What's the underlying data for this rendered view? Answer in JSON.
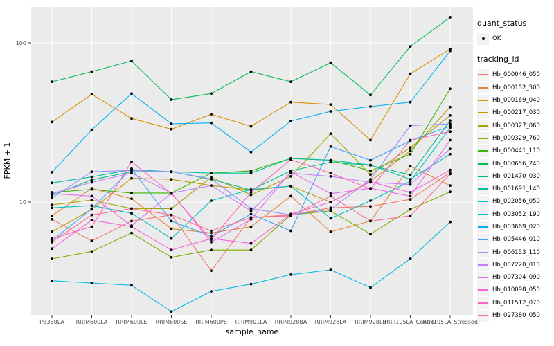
{
  "plot": {
    "panel_bg": "#EBEBEB",
    "grid_color": "#FFFFFF",
    "tick_label_color": "#4D4D4D",
    "point_color": "#000000"
  },
  "legend": {
    "quant_status_title": "quant_status",
    "quant_status_items": [
      {
        "label": "OK"
      }
    ],
    "tracking_id_title": "tracking_id"
  },
  "chart_data": {
    "type": "line",
    "title": "",
    "xlabel": "sample_name",
    "ylabel": "FPKM + 1",
    "y_scale": "log10",
    "ylim": [
      1.95,
      168
    ],
    "y_tick_labels": [
      "100",
      "10"
    ],
    "y_tick_values": [
      100,
      10
    ],
    "y_minor_gridlines": [
      31.623,
      3.1623
    ],
    "grid": true,
    "legend_position": "right",
    "categories": [
      "PB350LA",
      "RRIM600LA",
      "RRIM600LE",
      "RRIM600SE",
      "RRIM600PE",
      "RRIM901LA",
      "RRIM928BA",
      "RRIM928LA",
      "RRIM928LB",
      "RRII105LA_Control",
      "RRII105LA_Stressed"
    ],
    "quant_status": "OK",
    "series": [
      {
        "name": "Hb_000046_050",
        "color": "#F8766D",
        "values": [
          7.8,
          5.7,
          7.6,
          8.3,
          3.7,
          8.0,
          8.3,
          9.2,
          9.4,
          10.4,
          15.3
        ]
      },
      {
        "name": "Hb_000152_500",
        "color": "#EA8331",
        "values": [
          8.2,
          12.2,
          10.5,
          6.8,
          6.4,
          7.0,
          10.9,
          6.5,
          7.6,
          16.8,
          12.7
        ]
      },
      {
        "name": "Hb_000169_040",
        "color": "#D89000",
        "values": [
          31.8,
          47.6,
          33.5,
          28.7,
          35.6,
          29.9,
          42.4,
          41.0,
          24.5,
          64.0,
          91.5
        ]
      },
      {
        "name": "Hb_000217_030",
        "color": "#C09B00",
        "values": [
          6.5,
          9.0,
          14.1,
          13.9,
          12.7,
          11.9,
          12.6,
          10.0,
          13.5,
          21.0,
          39.5
        ]
      },
      {
        "name": "Hb_000327_060",
        "color": "#A3A500",
        "values": [
          9.6,
          10.3,
          9.1,
          9.1,
          14.3,
          11.1,
          14.5,
          26.9,
          14.9,
          22.0,
          35.0
        ]
      },
      {
        "name": "Hb_000329_760",
        "color": "#7CAE00",
        "values": [
          4.4,
          4.9,
          6.4,
          4.5,
          5.0,
          5.0,
          8.3,
          8.8,
          6.3,
          9.0,
          11.6
        ]
      },
      {
        "name": "Hb_000441_110",
        "color": "#39B600",
        "values": [
          11.5,
          12.0,
          11.4,
          11.4,
          15.2,
          15.7,
          18.8,
          18.3,
          15.7,
          20.0,
          51.5
        ]
      },
      {
        "name": "Hb_000656_240",
        "color": "#00BB4E",
        "values": [
          57,
          66,
          77,
          44,
          48,
          66,
          57,
          75,
          47,
          95,
          145
        ]
      },
      {
        "name": "Hb_001470_030",
        "color": "#00BF7D",
        "values": [
          11.0,
          13.8,
          15.5,
          15.5,
          13.9,
          11.9,
          15.7,
          17.8,
          17.0,
          14.8,
          32.5
        ]
      },
      {
        "name": "Hb_001691_140",
        "color": "#00C1A3",
        "values": [
          13.2,
          14.4,
          16.0,
          15.5,
          15.2,
          15.2,
          18.8,
          18.3,
          17.1,
          13.9,
          20.0
        ]
      },
      {
        "name": "Hb_002056_050",
        "color": "#00BFC4",
        "values": [
          9.2,
          9.5,
          8.5,
          5.9,
          10.2,
          12.0,
          12.6,
          7.9,
          10.2,
          13.5,
          29.3
        ]
      },
      {
        "name": "Hb_003052_190",
        "color": "#00BAE0",
        "values": [
          3.2,
          3.1,
          3.0,
          2.05,
          2.75,
          3.05,
          3.5,
          3.75,
          2.9,
          4.4,
          7.5
        ]
      },
      {
        "name": "Hb_003669_020",
        "color": "#00B0F6",
        "values": [
          15.4,
          28.4,
          48.0,
          31.0,
          31.4,
          20.6,
          32.3,
          37.1,
          39.8,
          42.4,
          89.0
        ]
      },
      {
        "name": "Hb_005446_010",
        "color": "#35A2FF",
        "values": [
          5.7,
          9.1,
          16.2,
          7.6,
          6.1,
          8.4,
          6.6,
          22.3,
          18.3,
          24.3,
          30.0
        ]
      },
      {
        "name": "Hb_006153_110",
        "color": "#9590FF",
        "values": [
          10.6,
          15.5,
          15.8,
          15.5,
          14.0,
          9.1,
          8.3,
          9.0,
          13.9,
          30.2,
          31.0
        ]
      },
      {
        "name": "Hb_007220_010",
        "color": "#C77CFF",
        "values": [
          11.3,
          13.3,
          15.2,
          11.4,
          12.7,
          8.8,
          15.2,
          14.5,
          13.3,
          12.9,
          21.6
        ]
      },
      {
        "name": "Hb_007304_090",
        "color": "#E76BF3",
        "values": [
          11.3,
          10.9,
          7.1,
          11.4,
          5.6,
          7.8,
          15.5,
          11.3,
          12.2,
          10.9,
          24.5
        ]
      },
      {
        "name": "Hb_010098_050",
        "color": "#FA62DB",
        "values": [
          5.1,
          7.7,
          7.0,
          5.0,
          5.9,
          5.5,
          8.4,
          10.0,
          13.4,
          11.5,
          15.9
        ]
      },
      {
        "name": "Hb_011512_070",
        "color": "#FF62BC",
        "values": [
          5.9,
          7.0,
          17.9,
          11.3,
          5.8,
          11.5,
          18.5,
          15.2,
          12.1,
          24.5,
          27.7
        ]
      },
      {
        "name": "Hb_027380_050",
        "color": "#FF6A98",
        "values": [
          5.6,
          8.3,
          9.1,
          8.3,
          6.6,
          8.0,
          8.2,
          10.9,
          7.6,
          8.2,
          15.0
        ]
      }
    ]
  }
}
